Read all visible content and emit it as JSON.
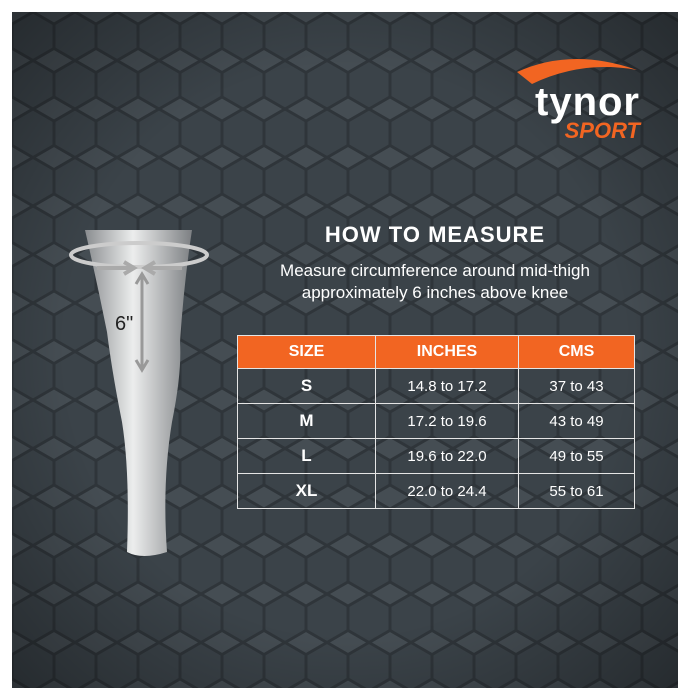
{
  "logo": {
    "brand": "tynor",
    "sub": "SPORT"
  },
  "title": "HOW TO MEASURE",
  "subtitle": [
    "Measure circumference around mid-thigh",
    "approximately 6 inches above knee"
  ],
  "figure": {
    "label": "6\""
  },
  "table": {
    "header": [
      "SIZE",
      "INCHES",
      "CMS"
    ],
    "rows": [
      [
        "S",
        "14.8 to 17.2",
        "37 to 43"
      ],
      [
        "M",
        "17.2 to 19.6",
        "43 to 49"
      ],
      [
        "L",
        "19.6 to 22.0",
        "49 to 55"
      ],
      [
        "XL",
        "22.0 to 24.4",
        "55 to 61"
      ]
    ]
  }
}
